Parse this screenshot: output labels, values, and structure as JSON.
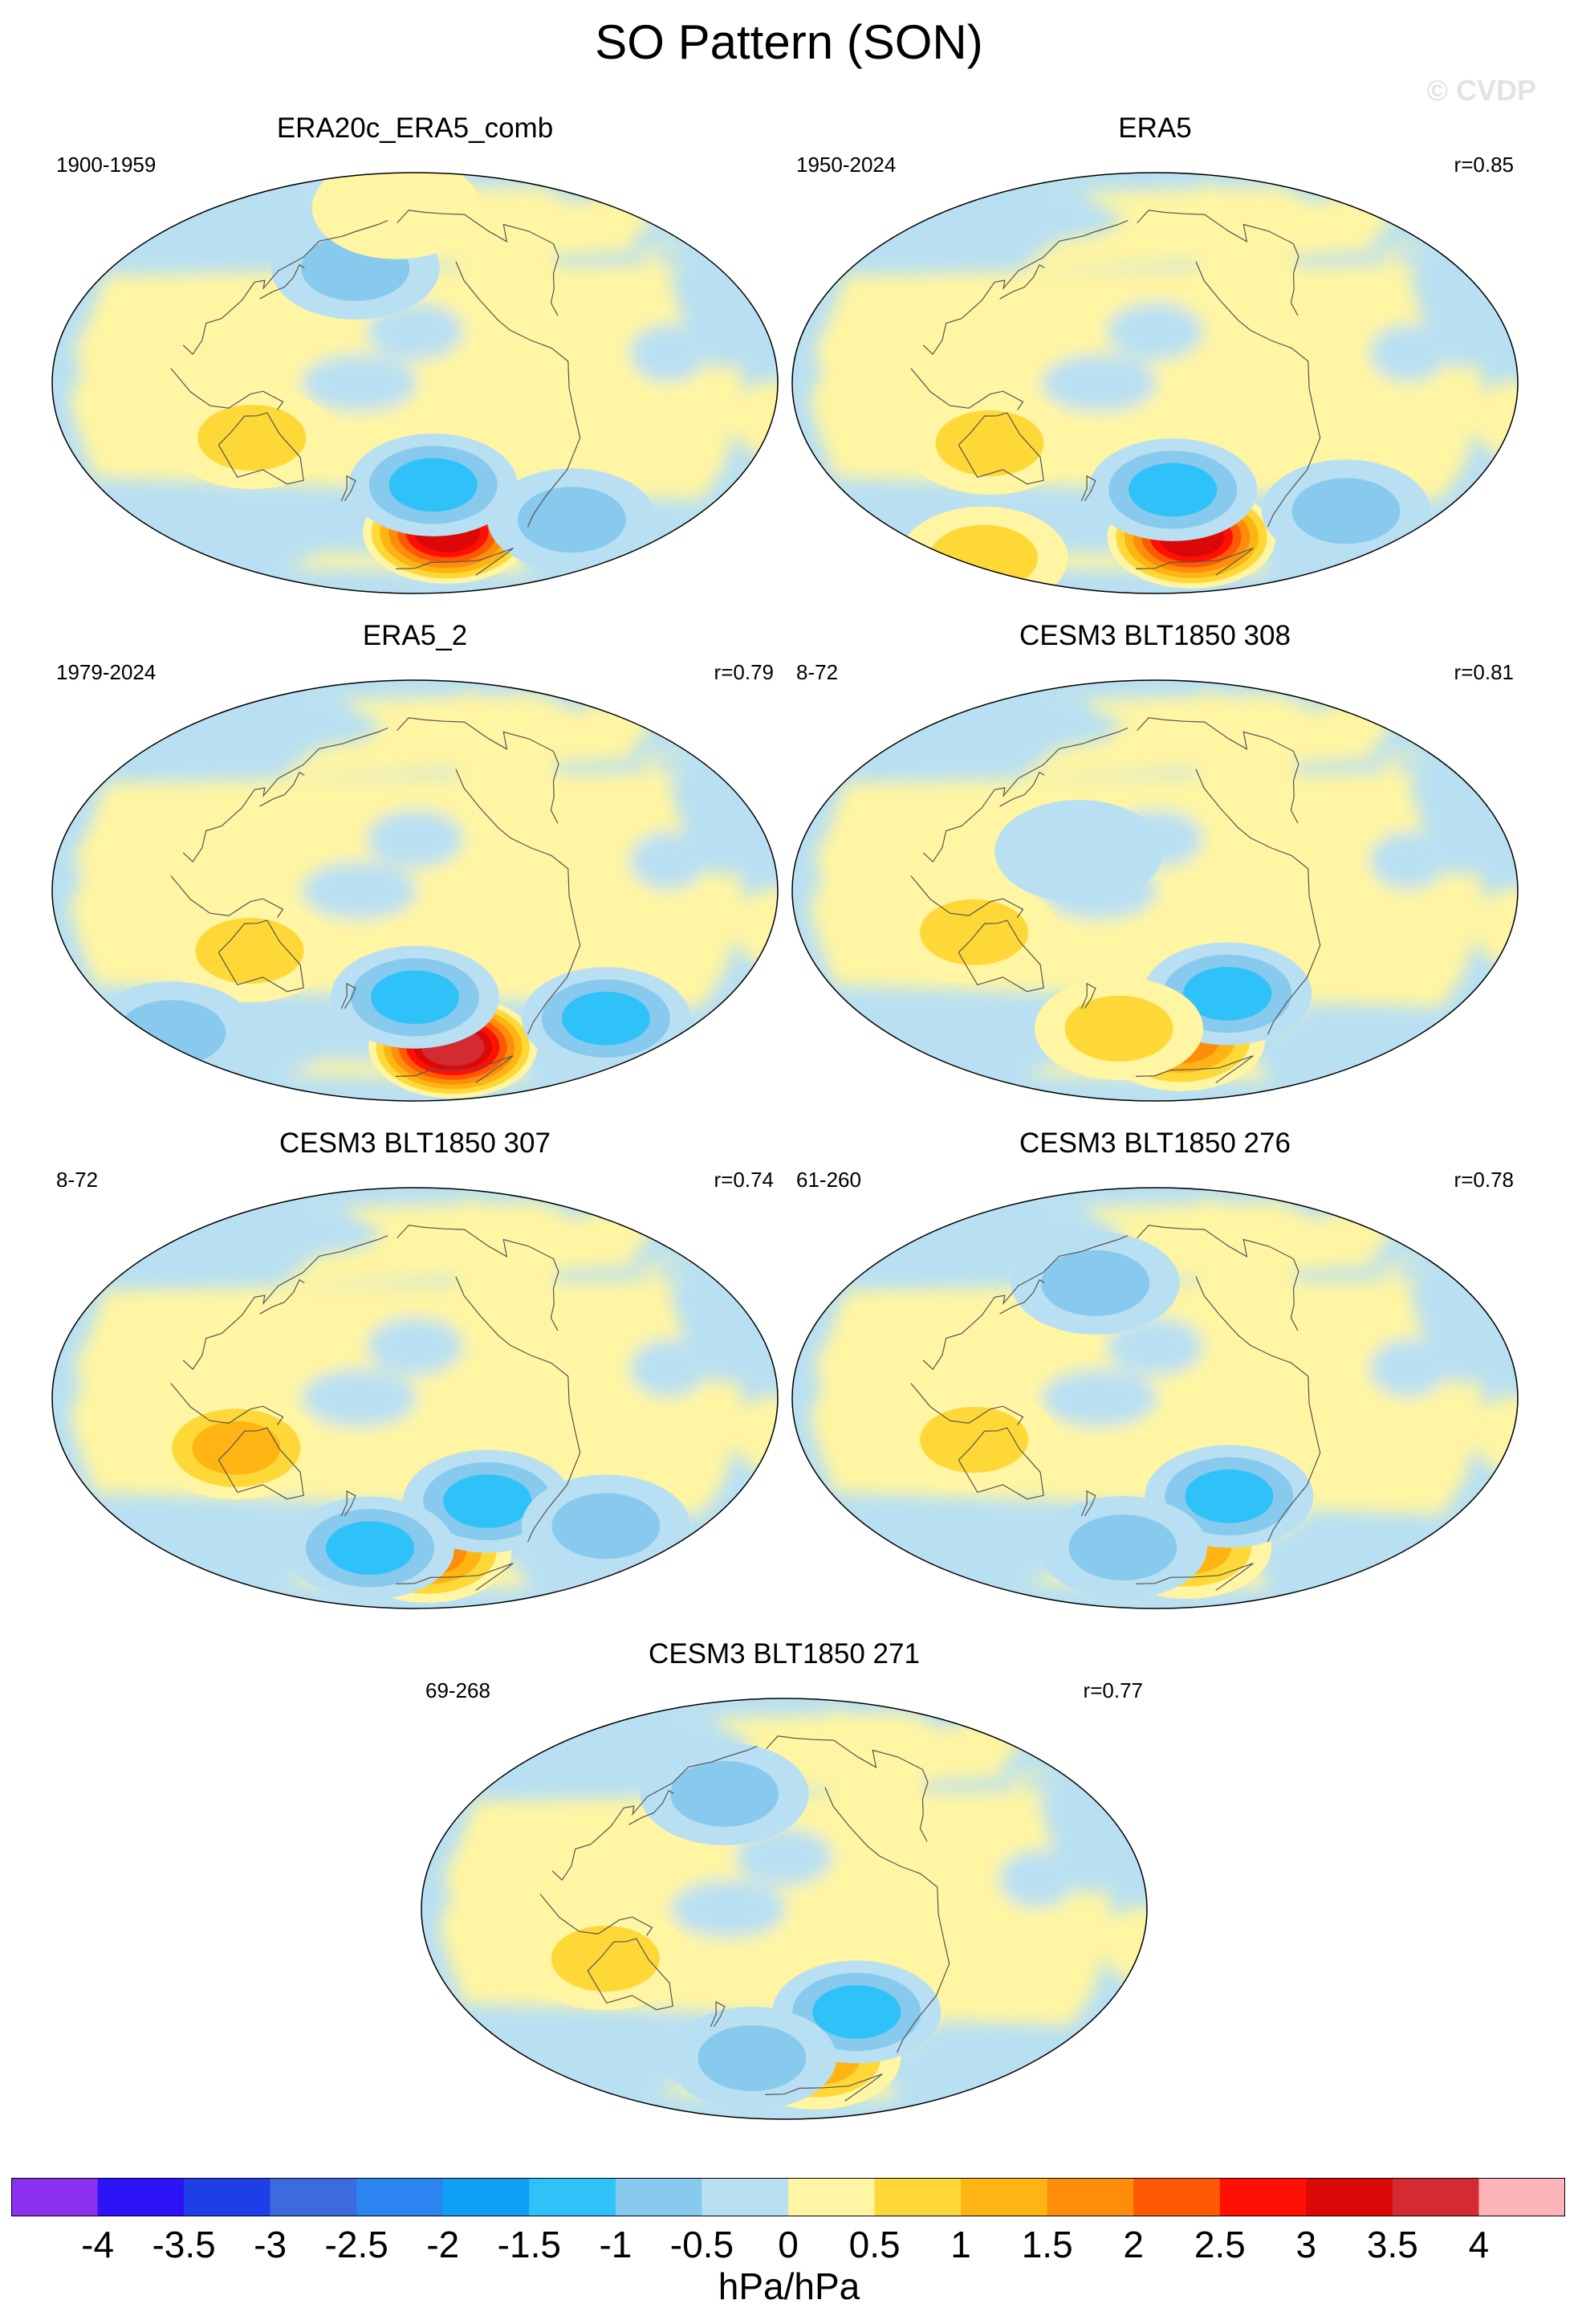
{
  "figure_title": "SO Pattern (SON)",
  "watermark": "© CVDP",
  "panels": [
    {
      "title": "ERA20c_ERA5_comb",
      "period": "1900-1959",
      "corr": ""
    },
    {
      "title": "ERA5",
      "period": "1950-2024",
      "corr": "r=0.85"
    },
    {
      "title": "ERA5_2",
      "period": "1979-2024",
      "corr": "r=0.79"
    },
    {
      "title": "CESM3 BLT1850 308",
      "period": "8-72",
      "corr": "r=0.81"
    },
    {
      "title": "CESM3 BLT1850 307",
      "period": "8-72",
      "corr": "r=0.74"
    },
    {
      "title": "CESM3 BLT1850 276",
      "period": "61-260",
      "corr": "r=0.78"
    },
    {
      "title": "CESM3 BLT1850 271",
      "period": "69-268",
      "corr": "r=0.77"
    }
  ],
  "chart_data": {
    "type": "heatmap",
    "title": "SO Pattern (SON)",
    "projection": "Hammer-Aitoff global map, Pacific-centered",
    "colorbar": {
      "units": "hPa/hPa",
      "tick_labels": [
        "-4",
        "-3.5",
        "-3",
        "-2.5",
        "-2",
        "-1.5",
        "-1",
        "-0.5",
        "0",
        "0.5",
        "1",
        "1.5",
        "2",
        "2.5",
        "3",
        "3.5",
        "4"
      ],
      "colors": [
        "#8b2ff0",
        "#2d14f7",
        "#1e3ee8",
        "#3c6be0",
        "#2b84f0",
        "#0fa0f5",
        "#2ec2f8",
        "#88c9ee",
        "#b9e0f2",
        "#fff5a2",
        "#fed836",
        "#feb412",
        "#fe8d0c",
        "#fe5a04",
        "#fe1004",
        "#dc0808",
        "#d42a32",
        "#fdb4b8"
      ]
    },
    "panels": [
      {
        "name": "ERA20c_ERA5_comb",
        "period": "1900-1959",
        "features": [
          {
            "type": "max",
            "lon": -125,
            "lat": -60,
            "value": 3.5
          },
          {
            "type": "min",
            "lon": -140,
            "lat": -40,
            "value": -1.5
          },
          {
            "type": "min",
            "lon": 175,
            "lat": 45,
            "value": -1.0
          },
          {
            "type": "max",
            "lon": -172,
            "lat": 72,
            "value": 0.5
          },
          {
            "type": "max",
            "lon": 132,
            "lat": -20,
            "value": 1.0
          },
          {
            "type": "min",
            "lon": -45,
            "lat": -50,
            "value": -1.0
          }
        ]
      },
      {
        "name": "ERA5",
        "period": "1950-2024",
        "features": [
          {
            "type": "max",
            "lon": -120,
            "lat": -62,
            "value": 3.5
          },
          {
            "type": "min",
            "lon": -140,
            "lat": -42,
            "value": -1.5
          },
          {
            "type": "min",
            "lon": -30,
            "lat": -45,
            "value": -1.0
          },
          {
            "type": "max",
            "lon": 130,
            "lat": -22,
            "value": 1.0
          },
          {
            "type": "max",
            "lon": 50,
            "lat": -60,
            "value": 1.0
          }
        ]
      },
      {
        "name": "ERA5_2",
        "period": "1979-2024",
        "features": [
          {
            "type": "max",
            "lon": -118,
            "lat": -63,
            "value": 4.0
          },
          {
            "type": "min",
            "lon": -150,
            "lat": -42,
            "value": -1.5
          },
          {
            "type": "min",
            "lon": -30,
            "lat": -45,
            "value": -1.5
          },
          {
            "type": "max",
            "lon": 130,
            "lat": -22,
            "value": 1.0
          },
          {
            "type": "min",
            "lon": 45,
            "lat": -45,
            "value": -1.0
          }
        ]
      },
      {
        "name": "CESM3 BLT1850 308",
        "period": "8-72",
        "features": [
          {
            "type": "max",
            "lon": -130,
            "lat": -60,
            "value": 2.0
          },
          {
            "type": "min",
            "lon": -110,
            "lat": -40,
            "value": -1.5
          },
          {
            "type": "max",
            "lon": 125,
            "lat": -15,
            "value": 1.0
          },
          {
            "type": "max",
            "lon": -175,
            "lat": -55,
            "value": 1.0
          },
          {
            "type": "min",
            "lon": 175,
            "lat": 15,
            "value": -0.5
          }
        ]
      },
      {
        "name": "CESM3 BLT1850 307",
        "period": "8-72",
        "features": [
          {
            "type": "max",
            "lon": -140,
            "lat": -62,
            "value": 2.0
          },
          {
            "type": "min",
            "lon": -110,
            "lat": -40,
            "value": -1.5
          },
          {
            "type": "min",
            "lon": 175,
            "lat": -60,
            "value": -1.5
          },
          {
            "type": "max",
            "lon": 125,
            "lat": -18,
            "value": 1.5
          },
          {
            "type": "min",
            "lon": -30,
            "lat": -45,
            "value": -1.0
          }
        ]
      },
      {
        "name": "CESM3 BLT1850 276",
        "period": "61-260",
        "features": [
          {
            "type": "max",
            "lon": -125,
            "lat": -60,
            "value": 1.5
          },
          {
            "type": "min",
            "lon": -110,
            "lat": -38,
            "value": -1.5
          },
          {
            "type": "max",
            "lon": 125,
            "lat": -15,
            "value": 1.0
          },
          {
            "type": "min",
            "lon": 175,
            "lat": 45,
            "value": -1.0
          },
          {
            "type": "min",
            "lon": -175,
            "lat": -60,
            "value": -1.0
          }
        ]
      },
      {
        "name": "CESM3 BLT1850 271",
        "period": "69-268",
        "features": [
          {
            "type": "max",
            "lon": -125,
            "lat": -60,
            "value": 1.5
          },
          {
            "type": "min",
            "lon": -110,
            "lat": -40,
            "value": -1.5
          },
          {
            "type": "max",
            "lon": 125,
            "lat": -18,
            "value": 1.0
          },
          {
            "type": "min",
            "lon": 175,
            "lat": 45,
            "value": -1.0
          },
          {
            "type": "min",
            "lon": -175,
            "lat": -60,
            "value": -1.0
          }
        ]
      }
    ]
  }
}
